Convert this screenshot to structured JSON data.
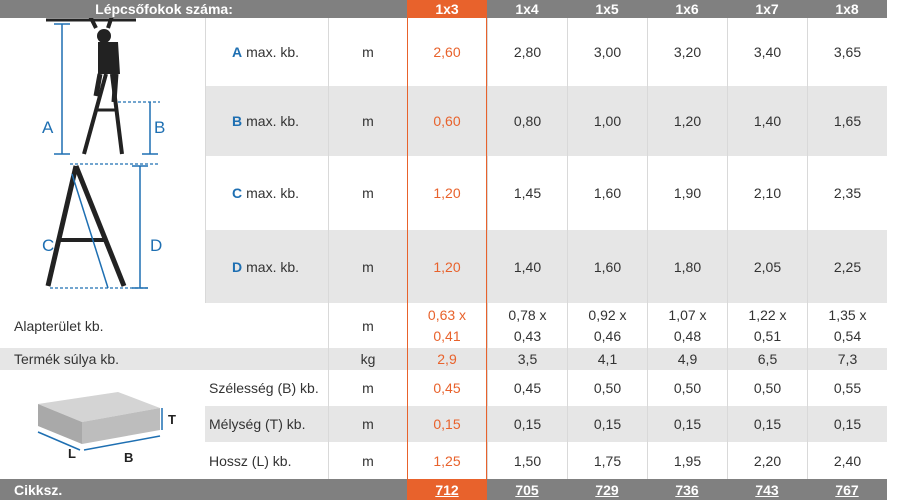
{
  "header": {
    "title": "Lépcsőfokok száma:",
    "columns": [
      "1x3",
      "1x4",
      "1x5",
      "1x6",
      "1x7",
      "1x8"
    ]
  },
  "rows": {
    "a": {
      "letter": "A",
      "label": "max. kb.",
      "unit": "m",
      "values": [
        "2,60",
        "2,80",
        "3,00",
        "3,20",
        "3,40",
        "3,65"
      ]
    },
    "b": {
      "letter": "B",
      "label": "max. kb.",
      "unit": "m",
      "values": [
        "0,60",
        "0,80",
        "1,00",
        "1,20",
        "1,40",
        "1,65"
      ]
    },
    "c": {
      "letter": "C",
      "label": "max. kb.",
      "unit": "m",
      "values": [
        "1,20",
        "1,45",
        "1,60",
        "1,90",
        "2,10",
        "2,35"
      ]
    },
    "d": {
      "letter": "D",
      "label": "max. kb.",
      "unit": "m",
      "values": [
        "1,20",
        "1,40",
        "1,60",
        "1,80",
        "2,05",
        "2,25"
      ]
    },
    "footprint": {
      "label": "Alapterület kb.",
      "unit": "m",
      "values": [
        [
          "0,63 x",
          "0,41"
        ],
        [
          "0,78 x",
          "0,43"
        ],
        [
          "0,92 x",
          "0,46"
        ],
        [
          "1,07 x",
          "0,48"
        ],
        [
          "1,22 x",
          "0,51"
        ],
        [
          "1,35 x",
          "0,54"
        ]
      ]
    },
    "weight": {
      "label": "Termék súlya kb.",
      "unit": "kg",
      "values": [
        "2,9",
        "3,5",
        "4,1",
        "4,9",
        "6,5",
        "7,3"
      ]
    },
    "width": {
      "label": "Szélesség (B) kb.",
      "unit": "m",
      "values": [
        "0,45",
        "0,45",
        "0,50",
        "0,50",
        "0,50",
        "0,55"
      ]
    },
    "depth": {
      "label": "Mélység (T) kb.",
      "unit": "m",
      "values": [
        "0,15",
        "0,15",
        "0,15",
        "0,15",
        "0,15",
        "0,15"
      ]
    },
    "length": {
      "label": "Hossz (L) kb.",
      "unit": "m",
      "values": [
        "1,25",
        "1,50",
        "1,75",
        "1,95",
        "2,20",
        "2,40"
      ]
    }
  },
  "footer": {
    "label": "Cikksz.",
    "codes": [
      "712",
      "705",
      "729",
      "736",
      "743",
      "767"
    ]
  },
  "diagram_letters": {
    "a": "A",
    "b": "B",
    "c": "C",
    "d": "D",
    "t": "T",
    "l": "L",
    "bb": "B"
  },
  "colors": {
    "accent": "#e8622c",
    "blue": "#1e6fb2",
    "header_gray": "#808080",
    "row_gray": "#e6e6e6"
  },
  "icons": [
    "person-on-ladder-illustration",
    "ladder-dimensions-illustration",
    "package-box-illustration"
  ]
}
